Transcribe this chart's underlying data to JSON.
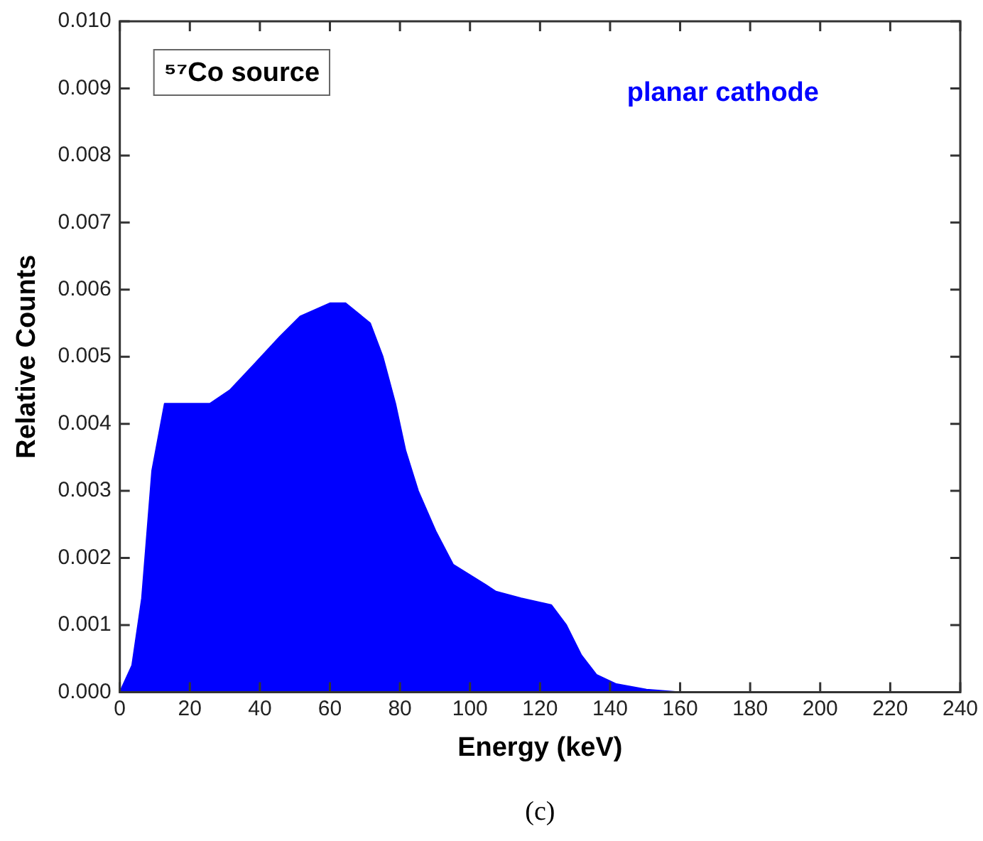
{
  "chart_data": {
    "type": "area",
    "xlabel": "Energy (keV)",
    "ylabel": "Relative Counts",
    "annotations": [
      "⁵⁷Co source",
      "planar cathode",
      "(c)"
    ],
    "x": [
      0,
      3.5,
      6.3,
      9.2,
      12.8,
      20,
      25.7,
      31.4,
      38.6,
      45.7,
      51.5,
      60.1,
      64.4,
      71.5,
      75.1,
      78.7,
      81.6,
      85.2,
      90.2,
      95.2,
      104.5,
      107.4,
      114.6,
      123.2,
      127.5,
      131.8,
      136.1,
      141.8,
      150.4,
      160,
      240
    ],
    "series": [
      {
        "color": "#0000ff",
        "values": [
          0,
          0.0004,
          0.0014,
          0.0033,
          0.0043,
          0.0043,
          0.0043,
          0.0045,
          0.0049,
          0.0053,
          0.0056,
          0.0058,
          0.0058,
          0.0055,
          0.005,
          0.0043,
          0.0036,
          0.003,
          0.0024,
          0.0019,
          0.0016,
          0.0015,
          0.0014,
          0.0013,
          0.001,
          0.00055,
          0.00026,
          0.00012,
          4e-05,
          0,
          0
        ]
      }
    ],
    "xlim": [
      0,
      240
    ],
    "xticks": [
      0,
      20,
      40,
      60,
      80,
      100,
      120,
      140,
      160,
      180,
      200,
      220,
      240
    ],
    "ylim": [
      0,
      0.01
    ],
    "yticks": [
      {
        "value": 0,
        "label": "0.000"
      },
      {
        "value": 0.001,
        "label": "0.001"
      },
      {
        "value": 0.002,
        "label": "0.002"
      },
      {
        "value": 0.003,
        "label": "0.003"
      },
      {
        "value": 0.004,
        "label": "0.004"
      },
      {
        "value": 0.005,
        "label": "0.005"
      },
      {
        "value": 0.006,
        "label": "0.006"
      },
      {
        "value": 0.007,
        "label": "0.007"
      },
      {
        "value": 0.008,
        "label": "0.008"
      },
      {
        "value": 0.009,
        "label": "0.009"
      },
      {
        "value": 0.01,
        "label": "0.010"
      }
    ],
    "grid": false,
    "legend": false
  }
}
